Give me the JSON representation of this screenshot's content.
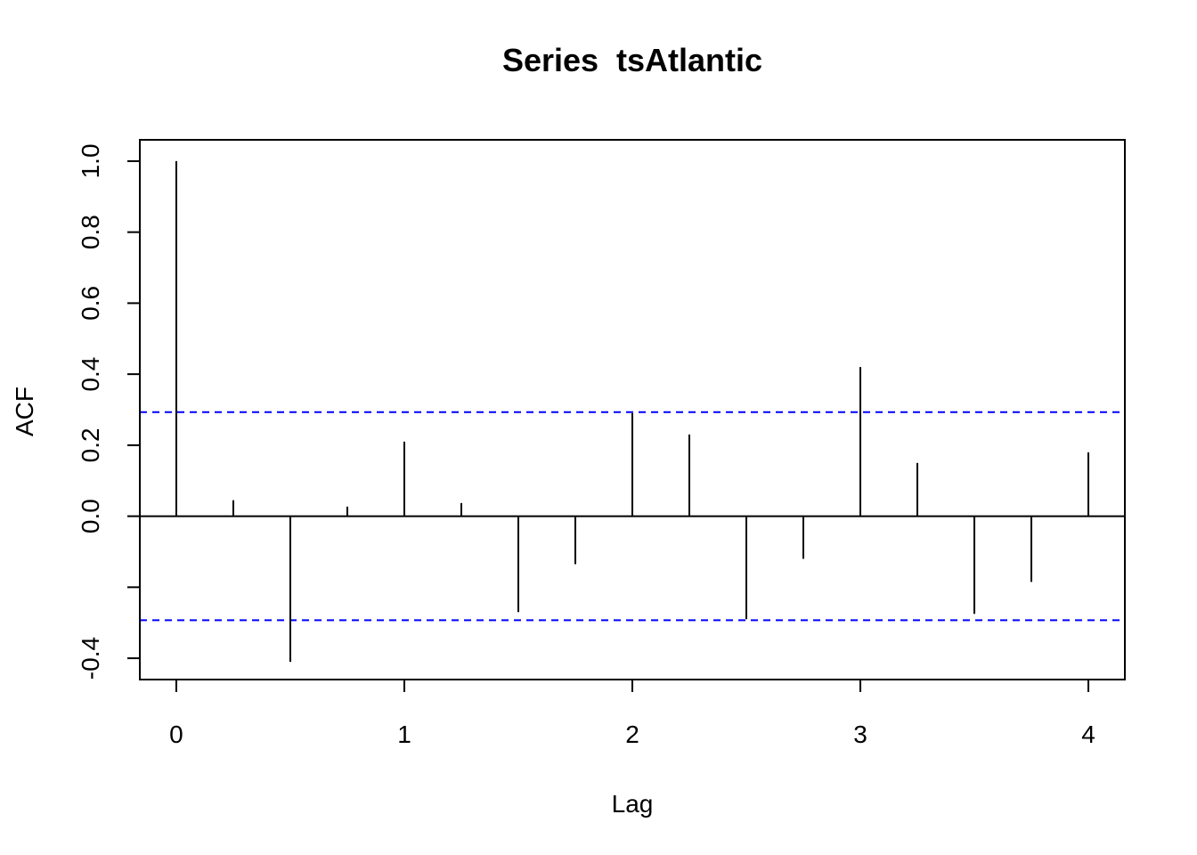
{
  "chart_data": {
    "type": "bar",
    "title": "Series  tsAtlantic",
    "xlabel": "Lag",
    "ylabel": "ACF",
    "xlim": [
      -0.16,
      4.16
    ],
    "ylim": [
      -0.46,
      1.06
    ],
    "xticks": [
      "0",
      "1",
      "2",
      "3",
      "4"
    ],
    "yticks": [
      "-0.4",
      "0.0",
      "0.2",
      "0.4",
      "0.6",
      "0.8",
      "1.0"
    ],
    "series": [
      {
        "x": [
          0,
          0.25,
          0.5,
          0.75,
          1,
          1.25,
          1.5,
          1.75,
          2,
          2.25,
          2.5,
          2.75,
          3,
          3.25,
          3.5,
          3.75,
          4
        ],
        "values": [
          1.0,
          0.045,
          -0.41,
          0.027,
          0.21,
          0.037,
          -0.27,
          -0.135,
          0.29,
          0.23,
          -0.29,
          -0.12,
          0.42,
          0.15,
          -0.275,
          -0.185,
          0.18
        ]
      }
    ],
    "confidence_band": [
      0.293,
      -0.293
    ],
    "confidence_color": "#0000ff",
    "grid": false,
    "zero_line": true
  }
}
